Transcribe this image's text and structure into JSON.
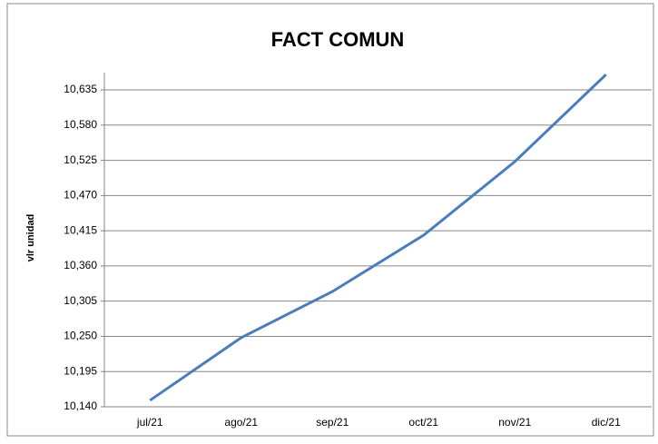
{
  "chart_data": {
    "type": "line",
    "title": "FACT COMUN",
    "y_label": "vlr unidad",
    "categories": [
      "jul/21",
      "ago/21",
      "sep/21",
      "oct/21",
      "nov/21",
      "dic/21"
    ],
    "series": [
      {
        "name": "vlr unidad",
        "color": "#4a7ebb",
        "values": [
          10150,
          10248,
          10320,
          10408,
          10523,
          10659
        ]
      }
    ],
    "ylim": [
      10140,
      10662
    ],
    "yticks": [
      {
        "value": 10140,
        "label": "10,140"
      },
      {
        "value": 10195,
        "label": "10,195"
      },
      {
        "value": 10250,
        "label": "10,250"
      },
      {
        "value": 10305,
        "label": "10,305"
      },
      {
        "value": 10360,
        "label": "10,360"
      },
      {
        "value": 10415,
        "label": "10,415"
      },
      {
        "value": 10470,
        "label": "10,470"
      },
      {
        "value": 10525,
        "label": "10,525"
      },
      {
        "value": 10580,
        "label": "10,580"
      },
      {
        "value": 10635,
        "label": "10,635"
      }
    ],
    "grid": true
  }
}
